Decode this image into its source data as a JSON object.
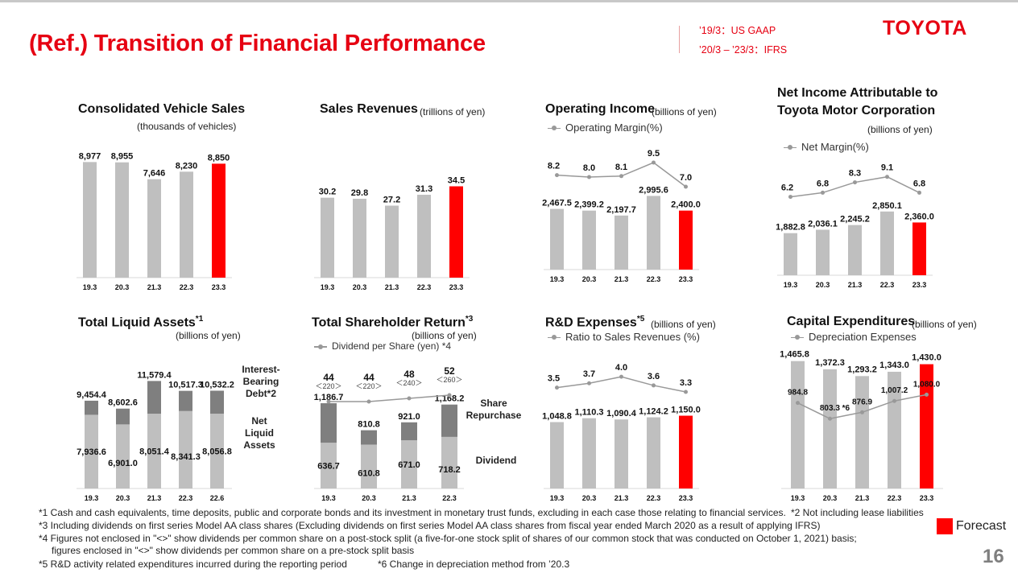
{
  "header": {
    "title": "(Ref.) Transition of Financial Performance",
    "gaap_line1": "’19/3：US GAAP",
    "gaap_line2": "’20/3 – ’23/3：IFRS",
    "logo": "TOYOTA"
  },
  "colors": {
    "bar": "#bfbfbf",
    "forecast": "#ff0000",
    "stack_top": "#7f7f7f",
    "line": "#999999",
    "title": "#e60012"
  },
  "chart_data": [
    {
      "id": "vehicle-sales",
      "type": "bar",
      "title": "Consolidated Vehicle Sales",
      "unit": "(thousands of vehicles)",
      "categories": [
        "19.3",
        "20.3",
        "21.3",
        "22.3",
        "23.3"
      ],
      "values": [
        8977,
        8955,
        7646,
        8230,
        8850
      ],
      "labels": [
        "8,977",
        "8,955",
        "7,646",
        "8,230",
        "8,850"
      ],
      "forecast_index": 4,
      "ylim": [
        0,
        10000
      ]
    },
    {
      "id": "sales-revenues",
      "type": "bar",
      "title": "Sales Revenues",
      "unit": "(trillions of yen)",
      "categories": [
        "19.3",
        "20.3",
        "21.3",
        "22.3",
        "23.3"
      ],
      "values": [
        30.2,
        29.8,
        27.2,
        31.3,
        34.5
      ],
      "labels": [
        "30.2",
        "29.8",
        "27.2",
        "31.3",
        "34.5"
      ],
      "forecast_index": 4,
      "ylim": [
        0,
        38
      ]
    },
    {
      "id": "operating-income",
      "type": "bar",
      "title": "Operating Income",
      "unit": "(billions of yen)",
      "categories": [
        "19.3",
        "20.3",
        "21.3",
        "22.3",
        "23.3"
      ],
      "values": [
        2467.5,
        2399.2,
        2197.7,
        2995.6,
        2400.0
      ],
      "labels": [
        "2,467.5",
        "2,399.2",
        "2,197.7",
        "2,995.6",
        "2,400.0"
      ],
      "forecast_index": 4,
      "ylim": [
        0,
        3600
      ],
      "line": {
        "name": "Operating Margin(%)",
        "values": [
          8.2,
          8.0,
          8.1,
          9.5,
          7.0
        ],
        "labels": [
          "8.2",
          "8.0",
          "8.1",
          "9.5",
          "7.0"
        ],
        "range": [
          5,
          10
        ]
      }
    },
    {
      "id": "net-income",
      "type": "bar",
      "title": "Net Income Attributable to",
      "title2": "Toyota Motor Corporation",
      "unit": "(billions of yen)",
      "categories": [
        "19.3",
        "20.3",
        "21.3",
        "22.3",
        "23.3"
      ],
      "values": [
        1882.8,
        2036.1,
        2245.2,
        2850.1,
        2360.0
      ],
      "labels": [
        "1,882.8",
        "2,036.1",
        "2,245.2",
        "2,850.1",
        "2,360.0"
      ],
      "forecast_index": 4,
      "ylim": [
        0,
        3600
      ],
      "line": {
        "name": "Net Margin(%)",
        "values": [
          6.2,
          6.8,
          8.3,
          9.1,
          6.8
        ],
        "labels": [
          "6.2",
          "6.8",
          "8.3",
          "9.1",
          "6.8"
        ],
        "range": [
          3,
          10
        ]
      }
    },
    {
      "id": "liquid-assets",
      "type": "stacked-bar",
      "title": "Total Liquid Assets",
      "title_sup": "*1",
      "unit": "(billions of yen)",
      "categories": [
        "19.3",
        "20.3",
        "21.3",
        "22.3",
        "22.6"
      ],
      "series": [
        {
          "name": "Net Liquid Assets",
          "values": [
            7936.6,
            6901.0,
            8051.4,
            8341.3,
            8056.8
          ],
          "labels": [
            "7,936.6",
            "6,901.0",
            "8,051.4",
            "8,341.3",
            "8,056.8"
          ]
        },
        {
          "name": "Interest-Bearing Debt*2",
          "values": [
            1517.8,
            1701.6,
            3528.0,
            2176.0,
            2475.4
          ]
        }
      ],
      "totals": [
        9454.4,
        8602.6,
        11579.4,
        10517.3,
        10532.2
      ],
      "total_labels": [
        "9,454.4",
        "8,602.6",
        "11,579.4",
        "10,517.3",
        "10,532.2"
      ],
      "side_labels": {
        "top": [
          "Interest-",
          "Bearing",
          "Debt*2"
        ],
        "bottom": [
          "Net Liquid",
          "Assets"
        ]
      },
      "ylim": [
        0,
        13000
      ]
    },
    {
      "id": "shareholder-return",
      "type": "stacked-bar",
      "title": "Total Shareholder Return",
      "title_sup": "*3",
      "unit": "(billions of yen)",
      "categories": [
        "19.3",
        "20.3",
        "21.3",
        "22.3"
      ],
      "series": [
        {
          "name": "Dividend",
          "values": [
            636.7,
            610.8,
            671.0,
            718.2
          ],
          "labels": [
            "636.7",
            "610.8",
            "671.0",
            "718.2"
          ]
        },
        {
          "name": "Share Repurchase",
          "values": [
            550.0,
            200.0,
            250.0,
            450.0
          ]
        }
      ],
      "totals": [
        1186.7,
        810.8,
        921.0,
        1168.2
      ],
      "total_labels": [
        "1,186.7",
        "810.8",
        "921.0",
        "1,168.2"
      ],
      "side_labels": {
        "top": [
          "Share",
          "Repurchase"
        ],
        "bottom": [
          "Dividend"
        ]
      },
      "ylim": [
        0,
        1400
      ],
      "line": {
        "name": "Dividend per Share (yen) *4",
        "values": [
          44,
          44,
          48,
          52
        ],
        "labels": [
          "44",
          "44",
          "48",
          "52"
        ],
        "sublabels": [
          "＜220＞",
          "＜220＞",
          "＜240＞",
          "＜260＞"
        ],
        "range": [
          30,
          70
        ]
      }
    },
    {
      "id": "rd-expenses",
      "type": "bar",
      "title": "R&D Expenses",
      "title_sup": "*5",
      "unit": "(billions of yen)",
      "categories": [
        "19.3",
        "20.3",
        "21.3",
        "22.3",
        "23.3"
      ],
      "values": [
        1048.8,
        1110.3,
        1090.4,
        1124.2,
        1150.0
      ],
      "labels": [
        "1,048.8",
        "1,110.3",
        "1,090.4",
        "1,124.2",
        "1,150.0"
      ],
      "forecast_index": 4,
      "ylim": [
        0,
        1500
      ],
      "line": {
        "name": "Ratio to Sales Revenues (%)",
        "values": [
          3.5,
          3.7,
          4.0,
          3.6,
          3.3
        ],
        "labels": [
          "3.5",
          "3.7",
          "4.0",
          "3.6",
          "3.3"
        ],
        "range": [
          2.0,
          4.6
        ]
      }
    },
    {
      "id": "capex",
      "type": "bar",
      "title": "Capital Expenditures",
      "unit": "(billions of yen)",
      "categories": [
        "19.3",
        "20.3",
        "21.3",
        "22.3",
        "23.3"
      ],
      "values": [
        1465.8,
        1372.3,
        1293.2,
        1343.0,
        1430.0
      ],
      "labels": [
        "1,465.8",
        "1,372.3",
        "1,293.2",
        "1,343.0",
        "1,430.0"
      ],
      "forecast_index": 4,
      "ylim": [
        0,
        1500
      ],
      "line": {
        "name": "Depreciation Expenses",
        "values": [
          984.8,
          803.3,
          876.9,
          1007.2,
          1080.0
        ],
        "labels": [
          "984.8",
          "803.3 *6",
          "876.9",
          "1,007.2",
          "1,080.0"
        ],
        "range": [
          0,
          1500
        ]
      }
    }
  ],
  "footnotes": {
    "n1": "*1  Cash and cash equivalents, time deposits, public and corporate bonds and its investment in monetary trust funds, excluding in each case those relating to financial services.",
    "n2": "*2  Not including lease liabilities",
    "n3": "*3  Including dividends on first series Model AA class shares (Excluding dividends on first series Model AA class shares from fiscal year ended March 2020 as a result of applying IFRS)",
    "n4a": "*4  Figures not enclosed in \"<>\" show dividends per common share on a post-stock split (a five-for-one stock split of shares of our common stock that was conducted on October 1, 2021) basis;",
    "n4b": "figures enclosed in \"<>\" show dividends per common share on a pre-stock split basis",
    "n5": "*5  R&D activity related expenditures incurred during the reporting period",
    "n6": "*6  Change in depreciation method from ’20.3"
  },
  "legend": {
    "forecast": "Forecast"
  },
  "page_number": "16"
}
